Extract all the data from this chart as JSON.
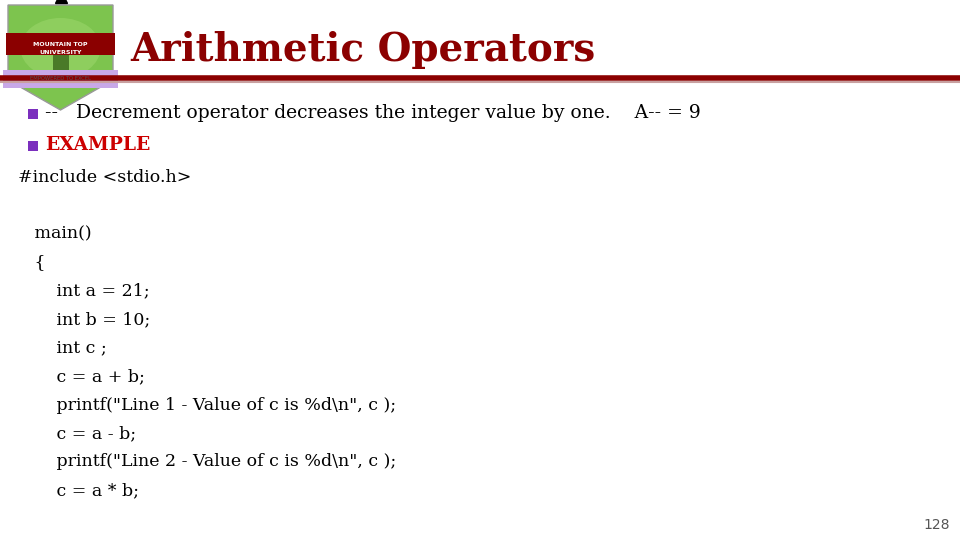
{
  "title": "Arithmetic Operators",
  "title_color": "#8B0000",
  "title_fontsize": 28,
  "bg_color": "#FFFFFF",
  "header_line_color1": "#8B0000",
  "header_line_color2": "#C8A0A0",
  "bullet_color": "#7B2FBE",
  "bullet1_line": "--   Decrement operator decreases the integer value by one.    A-- = 9",
  "bullet2_text": "EXAMPLE",
  "bullet2_color": "#CC0000",
  "code_lines": [
    "#include <stdio.h>",
    "",
    "   main()",
    "   {",
    "       int a = 21;",
    "       int b = 10;",
    "       int c ;",
    "       c = a + b;",
    "       printf(\"Line 1 - Value of c is %d\\n\", c );",
    "       c = a - b;",
    "       printf(\"Line 2 - Value of c is %d\\n\", c );",
    "       c = a * b;"
  ],
  "code_fontsize": 12.5,
  "page_number": "128"
}
